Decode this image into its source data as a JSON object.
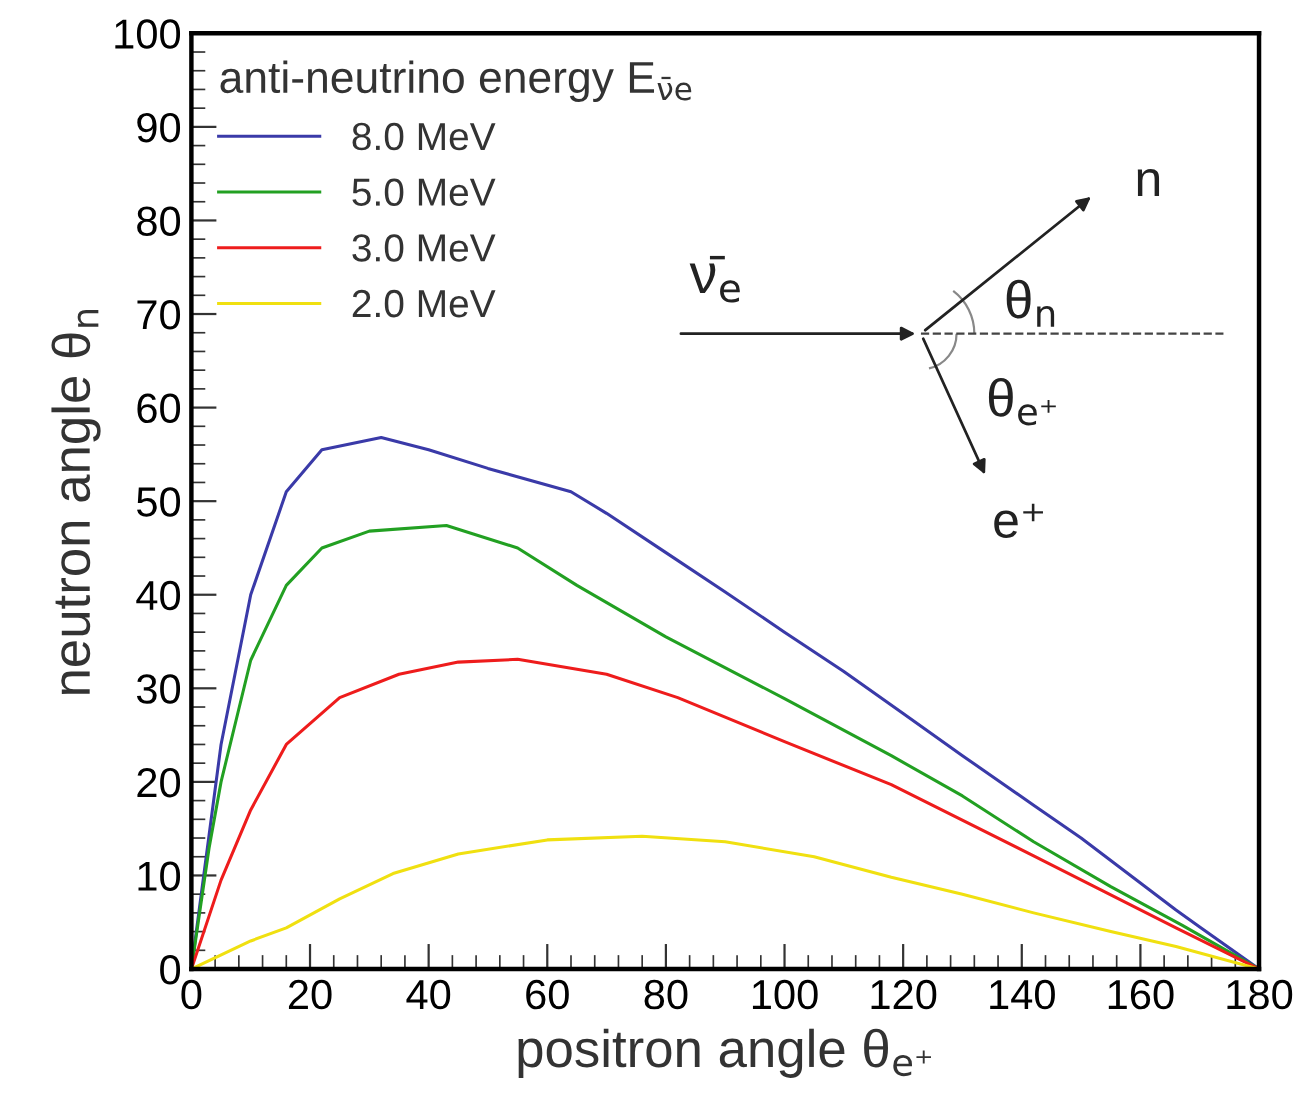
{
  "chart_data": {
    "type": "line",
    "xlabel": "positron angle θ$_{e⁺}$",
    "ylabel": "neutron angle θ$_{n}$",
    "legend_title": "anti-neutrino energy E$_{ν̄e}$",
    "xlim": [
      0,
      180
    ],
    "ylim": [
      0,
      100
    ],
    "xticks": [
      0,
      20,
      40,
      60,
      80,
      100,
      120,
      140,
      160,
      180
    ],
    "yticks": [
      0,
      10,
      20,
      30,
      40,
      50,
      60,
      70,
      80,
      90,
      100
    ],
    "legend": "top left",
    "grid": false,
    "marker": "none",
    "line_style": "solid",
    "annotations": [
      "ν̄$_{e}$",
      "θ$_{n}$",
      "θ$_{e⁺}$",
      "n",
      "e⁺"
    ],
    "series": [
      {
        "name": "8.0 MeV",
        "color": "#3a3aa8",
        "x": [
          0,
          5,
          10,
          16,
          22,
          32,
          40,
          50,
          64,
          70,
          80,
          90,
          100,
          110,
          120,
          130,
          142,
          150,
          160,
          166,
          170,
          180
        ],
        "values": [
          0,
          24,
          40,
          51,
          55.5,
          56.8,
          55.5,
          53.5,
          51,
          48.7,
          44.5,
          40.3,
          36,
          31.8,
          27.3,
          22.8,
          17.5,
          14,
          9.2,
          6.3,
          4.5,
          0
        ]
      },
      {
        "name": "5.0 MeV",
        "color": "#22a022",
        "x": [
          0,
          3,
          5,
          10,
          16,
          22,
          30,
          43,
          55,
          65,
          80,
          100,
          118,
          130,
          142,
          155,
          167,
          180
        ],
        "values": [
          0,
          13,
          20,
          33,
          41,
          45,
          46.8,
          47.4,
          45,
          41,
          35.5,
          28.9,
          22.8,
          18.5,
          13.6,
          8.8,
          4.7,
          0
        ]
      },
      {
        "name": "3.0 MeV",
        "color": "#ee1c1c",
        "x": [
          0,
          5,
          10,
          16,
          25,
          35,
          45,
          55,
          70,
          82,
          100,
          118,
          142,
          166,
          180
        ],
        "values": [
          0,
          9.5,
          17,
          24,
          29,
          31.5,
          32.8,
          33.1,
          31.5,
          29,
          24.3,
          19.7,
          12.1,
          4.4,
          0
        ]
      },
      {
        "name": "2.0 MeV",
        "color": "#f0e010",
        "x": [
          0,
          10,
          16,
          25,
          34,
          45,
          60,
          76,
          90,
          105,
          118,
          130,
          142,
          155,
          166,
          180
        ],
        "values": [
          0,
          3,
          4.4,
          7.5,
          10.2,
          12.3,
          13.8,
          14.2,
          13.6,
          12,
          9.8,
          8,
          6,
          4,
          2.4,
          0
        ]
      }
    ]
  }
}
